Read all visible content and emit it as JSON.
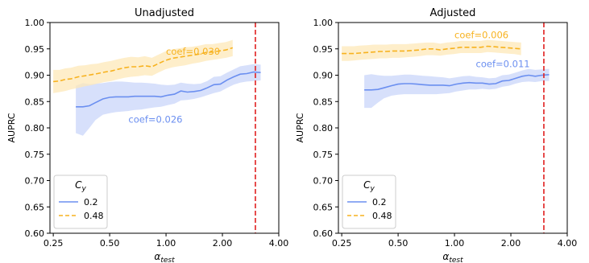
{
  "chart_data": [
    {
      "type": "line",
      "title": "Unadjusted",
      "ylabel": "AUPRC",
      "xlabel": "α",
      "xlabel_sub": "test",
      "xscale": "log",
      "xlim": [
        0.24,
        4.0
      ],
      "ylim": [
        0.6,
        1.0
      ],
      "xticks": [
        0.25,
        0.5,
        1.0,
        2.0,
        4.0
      ],
      "xtick_labels": [
        "0.25",
        "0.50",
        "1.00",
        "2.00",
        "4.00"
      ],
      "yticks": [
        0.6,
        0.65,
        0.7,
        0.75,
        0.8,
        0.85,
        0.9,
        0.95,
        1.0
      ],
      "ytick_labels": [
        "0.60",
        "0.65",
        "0.70",
        "0.75",
        "0.80",
        "0.85",
        "0.90",
        "0.95",
        "1.00"
      ],
      "vline": {
        "x": 3.0,
        "color": "#e02020"
      },
      "legend": {
        "placement": "lower-left",
        "title": "C",
        "title_sub": "y"
      },
      "series": [
        {
          "name": "0.2",
          "style": "solid",
          "color": "#6b8ff0",
          "fill": "#c9d6fa",
          "x": [
            0.33,
            0.36,
            0.39,
            0.42,
            0.46,
            0.5,
            0.54,
            0.58,
            0.63,
            0.68,
            0.74,
            0.8,
            0.87,
            0.94,
            1.02,
            1.11,
            1.2,
            1.3,
            1.41,
            1.53,
            1.66,
            1.8,
            1.95,
            2.12,
            2.3,
            2.49,
            2.7,
            2.93,
            3.2
          ],
          "y": [
            0.84,
            0.84,
            0.842,
            0.848,
            0.855,
            0.858,
            0.859,
            0.859,
            0.859,
            0.86,
            0.86,
            0.86,
            0.86,
            0.859,
            0.862,
            0.864,
            0.87,
            0.868,
            0.869,
            0.871,
            0.876,
            0.882,
            0.883,
            0.891,
            0.897,
            0.902,
            0.903,
            0.906,
            0.905
          ],
          "lower": [
            0.79,
            0.785,
            0.8,
            0.815,
            0.825,
            0.828,
            0.83,
            0.831,
            0.832,
            0.834,
            0.835,
            0.837,
            0.839,
            0.84,
            0.843,
            0.846,
            0.852,
            0.853,
            0.855,
            0.858,
            0.862,
            0.866,
            0.869,
            0.876,
            0.882,
            0.886,
            0.888,
            0.889,
            0.89
          ],
          "upper": [
            0.88,
            0.885,
            0.883,
            0.884,
            0.885,
            0.887,
            0.888,
            0.888,
            0.887,
            0.886,
            0.886,
            0.885,
            0.884,
            0.882,
            0.881,
            0.882,
            0.886,
            0.884,
            0.883,
            0.884,
            0.889,
            0.897,
            0.898,
            0.905,
            0.911,
            0.917,
            0.919,
            0.921,
            0.92
          ],
          "annotation": {
            "text": "coef=0.026",
            "x": 0.63,
            "y": 0.81
          }
        },
        {
          "name": "0.48",
          "style": "dashed",
          "color": "#f7b21f",
          "fill": "#fde8b8",
          "x": [
            0.25,
            0.27,
            0.29,
            0.31,
            0.34,
            0.37,
            0.4,
            0.43,
            0.47,
            0.51,
            0.55,
            0.6,
            0.65,
            0.71,
            0.77,
            0.84,
            0.91,
            0.99,
            1.08,
            1.17,
            1.27,
            1.38,
            1.5,
            1.63,
            1.77,
            1.92,
            2.09,
            2.27
          ],
          "y": [
            0.888,
            0.889,
            0.892,
            0.893,
            0.897,
            0.899,
            0.901,
            0.903,
            0.906,
            0.908,
            0.911,
            0.914,
            0.916,
            0.916,
            0.918,
            0.916,
            0.922,
            0.928,
            0.932,
            0.934,
            0.936,
            0.938,
            0.94,
            0.943,
            0.944,
            0.946,
            0.948,
            0.952
          ],
          "lower": [
            0.866,
            0.868,
            0.87,
            0.873,
            0.876,
            0.879,
            0.881,
            0.884,
            0.887,
            0.889,
            0.892,
            0.895,
            0.897,
            0.898,
            0.9,
            0.899,
            0.905,
            0.911,
            0.915,
            0.917,
            0.919,
            0.922,
            0.924,
            0.927,
            0.929,
            0.931,
            0.933,
            0.936
          ],
          "upper": [
            0.91,
            0.91,
            0.913,
            0.914,
            0.918,
            0.919,
            0.921,
            0.922,
            0.925,
            0.927,
            0.93,
            0.933,
            0.935,
            0.934,
            0.936,
            0.933,
            0.939,
            0.945,
            0.949,
            0.951,
            0.953,
            0.954,
            0.956,
            0.959,
            0.959,
            0.961,
            0.963,
            0.967
          ],
          "annotation": {
            "text": "coef=0.030",
            "x": 1.0,
            "y": 0.939
          }
        }
      ]
    },
    {
      "type": "line",
      "title": "Adjusted",
      "ylabel": "AUPRC",
      "xlabel": "α",
      "xlabel_sub": "test",
      "xscale": "log",
      "xlim": [
        0.24,
        4.0
      ],
      "ylim": [
        0.6,
        1.0
      ],
      "xticks": [
        0.25,
        0.5,
        1.0,
        2.0,
        4.0
      ],
      "xtick_labels": [
        "0.25",
        "0.50",
        "1.00",
        "2.00",
        "4.00"
      ],
      "yticks": [
        0.6,
        0.65,
        0.7,
        0.75,
        0.8,
        0.85,
        0.9,
        0.95,
        1.0
      ],
      "ytick_labels": [
        "0.60",
        "0.65",
        "0.70",
        "0.75",
        "0.80",
        "0.85",
        "0.90",
        "0.95",
        "1.00"
      ],
      "vline": {
        "x": 3.0,
        "color": "#e02020"
      },
      "legend": {
        "placement": "lower-left",
        "title": "C",
        "title_sub": "y"
      },
      "series": [
        {
          "name": "0.2",
          "style": "solid",
          "color": "#6b8ff0",
          "fill": "#c9d6fa",
          "x": [
            0.33,
            0.36,
            0.39,
            0.42,
            0.46,
            0.5,
            0.54,
            0.58,
            0.63,
            0.68,
            0.74,
            0.8,
            0.87,
            0.94,
            1.02,
            1.11,
            1.2,
            1.3,
            1.41,
            1.53,
            1.66,
            1.8,
            1.95,
            2.12,
            2.3,
            2.49,
            2.7,
            2.93,
            3.2
          ],
          "y": [
            0.872,
            0.872,
            0.873,
            0.876,
            0.88,
            0.883,
            0.884,
            0.884,
            0.883,
            0.882,
            0.881,
            0.881,
            0.881,
            0.88,
            0.883,
            0.885,
            0.886,
            0.885,
            0.885,
            0.883,
            0.884,
            0.889,
            0.89,
            0.894,
            0.898,
            0.9,
            0.898,
            0.9,
            0.901
          ],
          "lower": [
            0.838,
            0.838,
            0.848,
            0.856,
            0.861,
            0.863,
            0.864,
            0.864,
            0.864,
            0.864,
            0.864,
            0.864,
            0.865,
            0.866,
            0.869,
            0.871,
            0.873,
            0.873,
            0.874,
            0.873,
            0.874,
            0.878,
            0.88,
            0.884,
            0.887,
            0.888,
            0.887,
            0.889,
            0.889
          ],
          "upper": [
            0.9,
            0.902,
            0.9,
            0.899,
            0.899,
            0.9,
            0.901,
            0.901,
            0.9,
            0.899,
            0.898,
            0.897,
            0.896,
            0.894,
            0.896,
            0.898,
            0.899,
            0.897,
            0.896,
            0.894,
            0.895,
            0.9,
            0.901,
            0.905,
            0.909,
            0.912,
            0.91,
            0.911,
            0.912
          ],
          "annotation": {
            "text": "coef=0.011",
            "x": 1.3,
            "y": 0.915
          }
        },
        {
          "name": "0.48",
          "style": "dashed",
          "color": "#f7b21f",
          "fill": "#fde8b8",
          "x": [
            0.25,
            0.27,
            0.29,
            0.31,
            0.34,
            0.37,
            0.4,
            0.43,
            0.47,
            0.51,
            0.55,
            0.6,
            0.65,
            0.71,
            0.77,
            0.84,
            0.91,
            0.99,
            1.08,
            1.17,
            1.27,
            1.38,
            1.5,
            1.63,
            1.77,
            1.92,
            2.09,
            2.27
          ],
          "y": [
            0.941,
            0.941,
            0.941,
            0.942,
            0.943,
            0.944,
            0.945,
            0.945,
            0.946,
            0.946,
            0.946,
            0.947,
            0.948,
            0.95,
            0.95,
            0.948,
            0.95,
            0.951,
            0.953,
            0.953,
            0.953,
            0.953,
            0.955,
            0.954,
            0.953,
            0.952,
            0.951,
            0.95
          ],
          "lower": [
            0.927,
            0.927,
            0.928,
            0.929,
            0.93,
            0.931,
            0.932,
            0.932,
            0.933,
            0.933,
            0.934,
            0.935,
            0.936,
            0.938,
            0.938,
            0.937,
            0.939,
            0.94,
            0.942,
            0.942,
            0.942,
            0.942,
            0.944,
            0.943,
            0.942,
            0.941,
            0.94,
            0.938
          ],
          "upper": [
            0.955,
            0.955,
            0.955,
            0.956,
            0.957,
            0.958,
            0.958,
            0.958,
            0.959,
            0.959,
            0.959,
            0.96,
            0.961,
            0.962,
            0.962,
            0.96,
            0.962,
            0.963,
            0.965,
            0.965,
            0.965,
            0.965,
            0.967,
            0.966,
            0.965,
            0.964,
            0.963,
            0.962
          ],
          "annotation": {
            "text": "coef=0.006",
            "x": 1.0,
            "y": 0.97
          }
        }
      ]
    }
  ]
}
